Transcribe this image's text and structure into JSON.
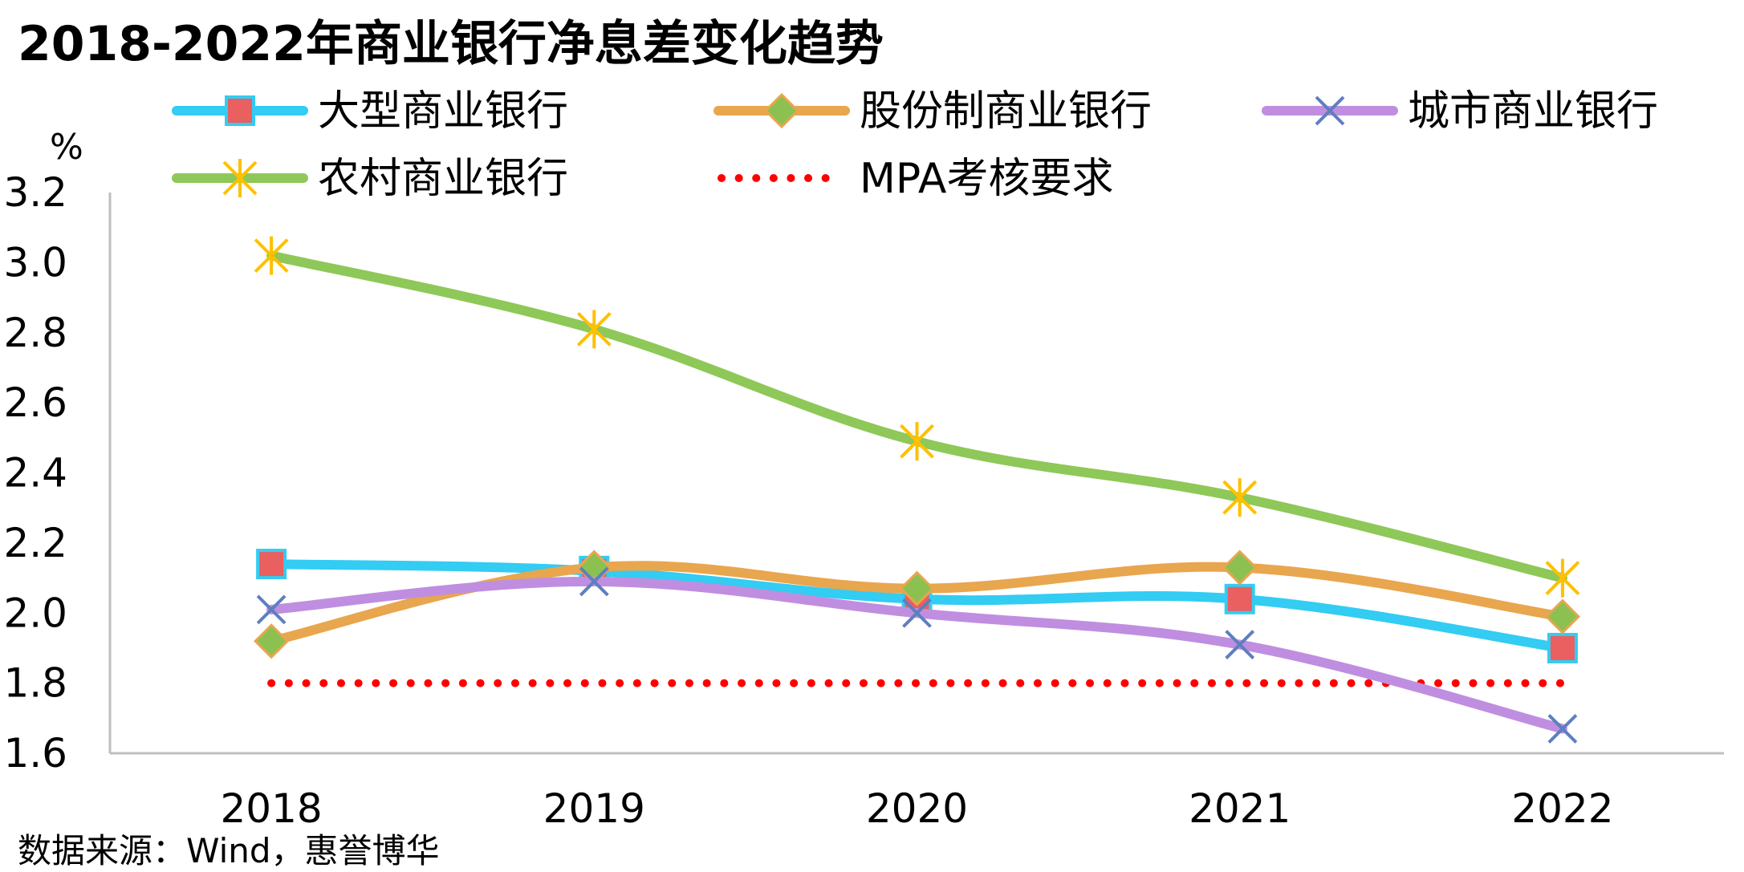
{
  "chart_data": {
    "type": "line",
    "title": "2018-2022年商业银行净息差变化趋势",
    "ylabel": "%",
    "xlabel": "",
    "categories": [
      "2018",
      "2019",
      "2020",
      "2021",
      "2022"
    ],
    "ylim": [
      1.6,
      3.2
    ],
    "yticks": [
      "1.6",
      "1.8",
      "2.0",
      "2.2",
      "2.4",
      "2.6",
      "2.8",
      "3.0",
      "3.2"
    ],
    "grid": false,
    "legend_position": "top",
    "series": [
      {
        "name": "大型商业银行",
        "values": [
          2.14,
          2.12,
          2.04,
          2.04,
          1.9
        ],
        "color": "#33ccf2",
        "marker": "square",
        "marker_color": "#ea5f5f",
        "style": "solid"
      },
      {
        "name": "股份制商业银行",
        "values": [
          1.92,
          2.13,
          2.07,
          2.13,
          1.99
        ],
        "color": "#e8a64e",
        "marker": "diamond",
        "marker_color": "#8cc152",
        "style": "solid"
      },
      {
        "name": "城市商业银行",
        "values": [
          2.01,
          2.09,
          2.0,
          1.91,
          1.67
        ],
        "color": "#c08ee0",
        "marker": "x",
        "marker_color": "#5e7fbf",
        "style": "solid"
      },
      {
        "name": "农村商业银行",
        "values": [
          3.02,
          2.81,
          2.49,
          2.33,
          2.1
        ],
        "color": "#8ec858",
        "marker": "star",
        "marker_color": "#ffc000",
        "style": "solid"
      },
      {
        "name": "MPA考核要求",
        "values": [
          1.8,
          1.8,
          1.8,
          1.8,
          1.8
        ],
        "color": "#ff0000",
        "marker": "none",
        "marker_color": "#ff0000",
        "style": "dotted"
      }
    ]
  },
  "source_text": "数据来源：Wind，惠誉博华"
}
